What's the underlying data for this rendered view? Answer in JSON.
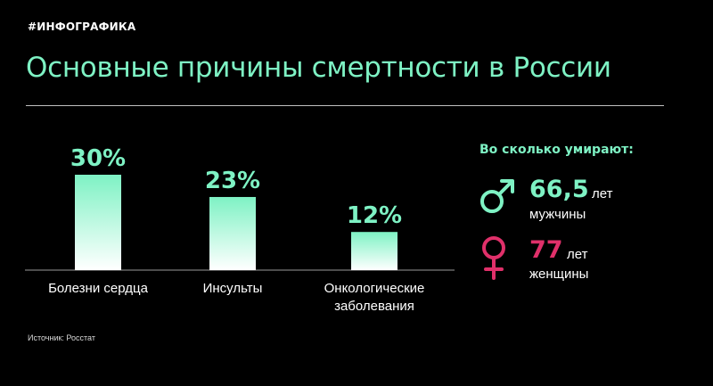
{
  "header": {
    "tag": "#ИНФОГРАФИКА",
    "title": "Основные причины смертности в России"
  },
  "colors": {
    "background": "#000000",
    "accent": "#7ef2c4",
    "female_accent": "#e0306a",
    "text": "#ffffff",
    "rule": "#bfbfbf"
  },
  "chart_data": {
    "type": "bar",
    "categories": [
      "Болезни сердца",
      "Инсульты",
      "Онкологические заболевания"
    ],
    "category_lines": [
      [
        "Болезни сердца"
      ],
      [
        "Инсульты"
      ],
      [
        "Онкологические",
        "заболевания"
      ]
    ],
    "values": [
      30,
      23,
      12
    ],
    "value_labels": [
      "30%",
      "23%",
      "12%"
    ],
    "unit": "%",
    "ylim": [
      0,
      30
    ],
    "grid": false,
    "legend": "none",
    "bar_gradient": [
      "#7ef2c4",
      "#ffffff"
    ]
  },
  "sidebar": {
    "heading": "Во сколько умирают:",
    "stats": [
      {
        "icon": "male-symbol-icon",
        "value": "66,5",
        "unit": "лет",
        "label": "мужчины",
        "color": "#7ef2c4"
      },
      {
        "icon": "female-symbol-icon",
        "value": "77",
        "unit": "лет",
        "label": "женщины",
        "color": "#e0306a"
      }
    ]
  },
  "footer": {
    "source": "Источник: Росстат"
  }
}
